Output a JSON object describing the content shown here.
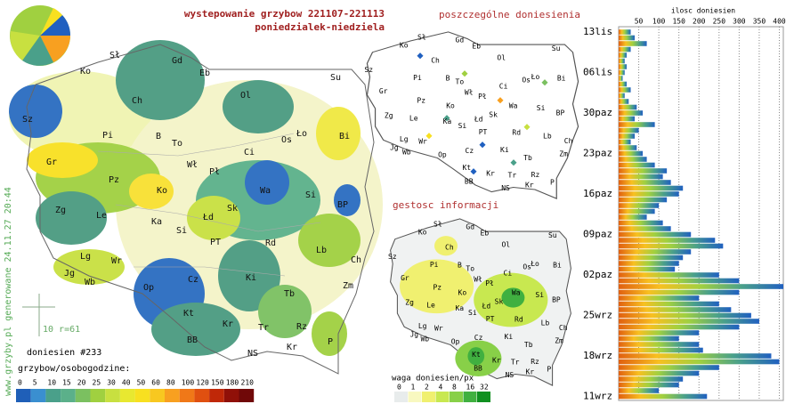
{
  "title": [
    "wystepowanie grzybow 221107-221113",
    "poniedzialek-niedziela"
  ],
  "credit": "www.grzyby.pl generowane 24.11.27 20:44",
  "map": {
    "labels": [
      "Sł",
      "Gd",
      "Ko",
      "Eb",
      "Su",
      "Ch",
      "Ol",
      "Sz",
      "Pi",
      "B",
      "To",
      "Ło",
      "Os",
      "Bi",
      "Ci",
      "Gr",
      "Wł",
      "Pł",
      "Pz",
      "Ko",
      "Wa",
      "Si",
      "Zg",
      "Le",
      "Ka",
      "Łd",
      "Sk",
      "BP",
      "Si",
      "PT",
      "Rd",
      "Lb",
      "Lg",
      "Wr",
      "Ch",
      "Jg",
      "Wb",
      "Zm",
      "Op",
      "Cz",
      "Ki",
      "Tb",
      "Kt",
      "Kr",
      "Tr",
      "Rz",
      "BB",
      "NS",
      "Kr",
      "P"
    ],
    "scale_note": "10 r=61",
    "count": "doniesien #233",
    "legend_title": "grzybow/osobogodzine:",
    "legend": {
      "ticks": [
        0,
        5,
        10,
        15,
        20,
        25,
        30,
        40,
        50,
        60,
        80,
        100,
        120,
        150,
        180,
        210
      ],
      "colors": [
        "#1f5fb8",
        "#3a8fd0",
        "#4aa08a",
        "#5bb08a",
        "#7bc060",
        "#a0d040",
        "#c8e040",
        "#e8e830",
        "#f8e020",
        "#f8c820",
        "#f8a020",
        "#f07818",
        "#e05010",
        "#c02808",
        "#901008",
        "#700808"
      ]
    }
  },
  "reports_title": "poszczególne doniesienia",
  "density": {
    "title": "gestosc informacji",
    "legend_title": "waga doniesien/px",
    "legend": {
      "ticks": [
        0,
        1,
        2,
        4,
        8,
        16,
        32
      ],
      "colors": [
        "#e8ecec",
        "#f8f8c0",
        "#f0f070",
        "#c8e850",
        "#88d048",
        "#40b040",
        "#109020"
      ]
    }
  },
  "chart_data": {
    "type": "bar",
    "title": "ilosc doniesien",
    "categories": [
      "13lis",
      null,
      null,
      null,
      null,
      null,
      null,
      "06lis",
      null,
      null,
      null,
      null,
      null,
      null,
      "30paz",
      null,
      null,
      null,
      null,
      null,
      null,
      "23paz",
      null,
      null,
      null,
      null,
      null,
      null,
      "16paz",
      null,
      null,
      null,
      null,
      null,
      null,
      "09paz",
      null,
      null,
      null,
      null,
      null,
      null,
      "02paz",
      null,
      null,
      null,
      null,
      null,
      null,
      "25wrz",
      null,
      null,
      null,
      null,
      null,
      null,
      "18wrz",
      null,
      null,
      null,
      null,
      null,
      null,
      "11wrz"
    ],
    "values": [
      30,
      40,
      70,
      30,
      20,
      15,
      20,
      15,
      10,
      20,
      30,
      15,
      25,
      45,
      60,
      40,
      90,
      50,
      40,
      30,
      45,
      60,
      70,
      90,
      120,
      110,
      130,
      160,
      150,
      120,
      100,
      90,
      70,
      110,
      130,
      180,
      240,
      260,
      180,
      160,
      150,
      140,
      250,
      300,
      410,
      300,
      200,
      250,
      280,
      330,
      350,
      300,
      200,
      150,
      200,
      210,
      380,
      400,
      250,
      200,
      160,
      150,
      100,
      220
    ],
    "xlim": [
      0,
      410
    ],
    "xticks": [
      50,
      100,
      150,
      200,
      250,
      300,
      350,
      400
    ],
    "grid": true
  }
}
